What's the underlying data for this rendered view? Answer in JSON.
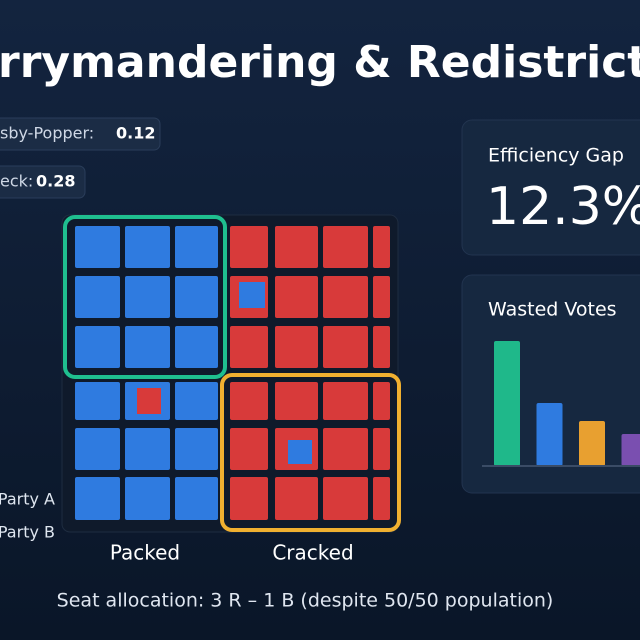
{
  "header": {
    "title": "rrymandering & Redistricting L"
  },
  "metrics": [
    {
      "label": "sby-Popper:",
      "value": "0.12"
    },
    {
      "label": "eck:",
      "value": "0.28"
    }
  ],
  "legend": [
    "Party A",
    "Party B"
  ],
  "district_labels": [
    "Packed",
    "Cracked"
  ],
  "footer": "Seat allocation: 3 R – 1 B (despite 50/50 population)",
  "efficiency_card": {
    "title": "Efficiency Gap",
    "value": "12.3%"
  },
  "wasted_votes": {
    "title": "Wasted Votes",
    "values": [
      125,
      63,
      45,
      32
    ],
    "colors": [
      "#1fb88a",
      "#2f7be0",
      "#e8a030",
      "#7a4fb0"
    ]
  }
}
